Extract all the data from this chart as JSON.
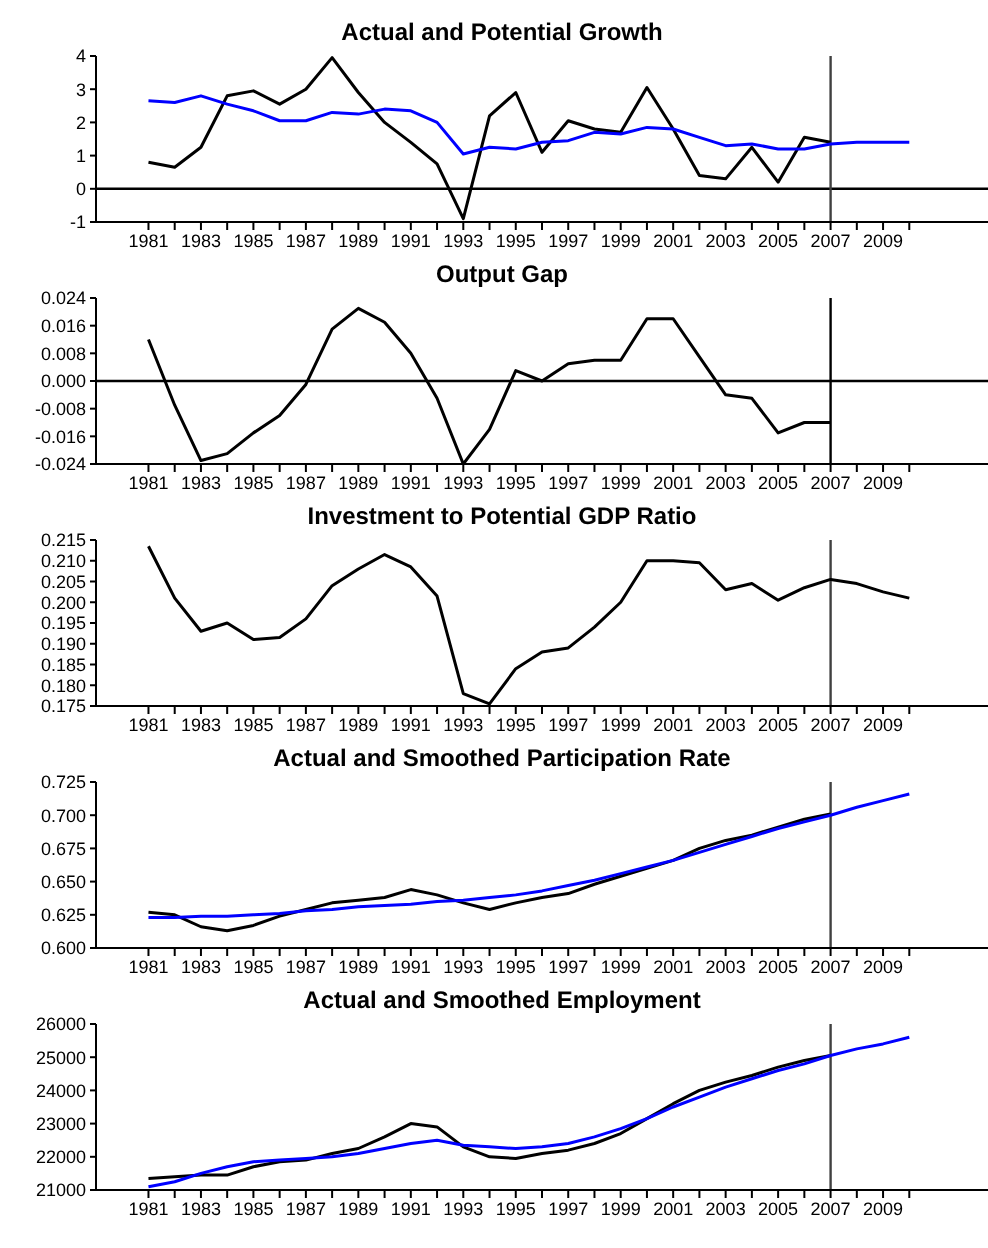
{
  "chart_data": [
    {
      "type": "line",
      "title": "Actual and Potential Growth",
      "x": [
        1981,
        1982,
        1983,
        1984,
        1985,
        1986,
        1987,
        1988,
        1989,
        1990,
        1991,
        1992,
        1993,
        1994,
        1995,
        1996,
        1997,
        1998,
        1999,
        2000,
        2001,
        2002,
        2003,
        2004,
        2005,
        2006,
        2007,
        2008,
        2009,
        2010
      ],
      "series": [
        {
          "color": "#000000",
          "values": [
            0.8,
            0.65,
            1.25,
            2.8,
            2.95,
            2.55,
            3.0,
            3.95,
            2.9,
            2.0,
            1.4,
            0.75,
            -0.9,
            2.2,
            2.9,
            1.1,
            2.05,
            1.8,
            1.7,
            3.05,
            1.8,
            0.4,
            0.3,
            1.25,
            0.2,
            1.55,
            1.4,
            null,
            null,
            null
          ]
        },
        {
          "color": "#0000ff",
          "values": [
            2.65,
            2.6,
            2.8,
            2.55,
            2.35,
            2.05,
            2.05,
            2.3,
            2.25,
            2.4,
            2.35,
            2.0,
            1.05,
            1.25,
            1.2,
            1.4,
            1.45,
            1.7,
            1.65,
            1.85,
            1.8,
            1.55,
            1.3,
            1.35,
            1.2,
            1.2,
            1.35,
            1.4,
            1.4,
            1.4
          ]
        }
      ],
      "xlim": [
        1979,
        2013
      ],
      "xticks": [
        1981,
        {
          "value": 1982,
          "label": null
        },
        1983,
        {
          "value": 1984,
          "label": null
        },
        1985,
        {
          "value": 1986,
          "label": null
        },
        1987,
        {
          "value": 1988,
          "label": null
        },
        1989,
        {
          "value": 1990,
          "label": null
        },
        1991,
        {
          "value": 1992,
          "label": null
        },
        1993,
        {
          "value": 1994,
          "label": null
        },
        1995,
        {
          "value": 1996,
          "label": null
        },
        1997,
        {
          "value": 1998,
          "label": null
        },
        1999,
        {
          "value": 2000,
          "label": null
        },
        2001,
        {
          "value": 2002,
          "label": null
        },
        2003,
        {
          "value": 2004,
          "label": null
        },
        2005,
        {
          "value": 2006,
          "label": null
        },
        2007,
        {
          "value": 2008,
          "label": null
        },
        2009,
        {
          "value": 2010,
          "label": null
        }
      ],
      "ylim": [
        -1,
        4
      ],
      "yticks": [
        -1,
        0,
        1,
        2,
        3,
        4
      ],
      "ref_lines": [
        {
          "axis": "y",
          "value": 0,
          "color": "#000000"
        },
        {
          "axis": "x",
          "value": 2007,
          "color": "#404040"
        }
      ]
    },
    {
      "type": "line",
      "title": "Output Gap",
      "x": [
        1981,
        1982,
        1983,
        1984,
        1985,
        1986,
        1987,
        1988,
        1989,
        1990,
        1991,
        1992,
        1993,
        1994,
        1995,
        1996,
        1997,
        1998,
        1999,
        2000,
        2001,
        2002,
        2003,
        2004,
        2005,
        2006,
        2007
      ],
      "series": [
        {
          "color": "#000000",
          "values": [
            0.012,
            -0.007,
            -0.023,
            -0.021,
            -0.015,
            -0.01,
            -0.001,
            0.015,
            0.021,
            0.017,
            0.008,
            -0.005,
            -0.024,
            -0.014,
            0.003,
            0.0,
            0.005,
            0.006,
            0.006,
            0.018,
            0.018,
            0.007,
            -0.004,
            -0.005,
            -0.015,
            -0.012,
            -0.012
          ]
        }
      ],
      "xlim": [
        1979,
        2013
      ],
      "xticks": [
        1981,
        {
          "value": 1982,
          "label": null
        },
        1983,
        {
          "value": 1984,
          "label": null
        },
        1985,
        {
          "value": 1986,
          "label": null
        },
        1987,
        {
          "value": 1988,
          "label": null
        },
        1989,
        {
          "value": 1990,
          "label": null
        },
        1991,
        {
          "value": 1992,
          "label": null
        },
        1993,
        {
          "value": 1994,
          "label": null
        },
        1995,
        {
          "value": 1996,
          "label": null
        },
        1997,
        {
          "value": 1998,
          "label": null
        },
        1999,
        {
          "value": 2000,
          "label": null
        },
        2001,
        {
          "value": 2002,
          "label": null
        },
        2003,
        {
          "value": 2004,
          "label": null
        },
        2005,
        {
          "value": 2006,
          "label": null
        },
        2007,
        {
          "value": 2008,
          "label": null
        },
        2009,
        {
          "value": 2010,
          "label": null
        }
      ],
      "ylim": [
        -0.024,
        0.024
      ],
      "yticks": [
        -0.024,
        -0.016,
        -0.008,
        {
          "value": 0,
          "label": "0.000"
        },
        0.008,
        0.016,
        0.024
      ],
      "ref_lines": [
        {
          "axis": "y",
          "value": 0,
          "color": "#000000"
        },
        {
          "axis": "x",
          "value": 2007,
          "color": "#000000"
        }
      ]
    },
    {
      "type": "line",
      "title": "Investment to Potential GDP Ratio",
      "x": [
        1981,
        1982,
        1983,
        1984,
        1985,
        1986,
        1987,
        1988,
        1989,
        1990,
        1991,
        1992,
        1993,
        1994,
        1995,
        1996,
        1997,
        1998,
        1999,
        2000,
        2001,
        2002,
        2003,
        2004,
        2005,
        2006,
        2007,
        2008,
        2009,
        2010
      ],
      "series": [
        {
          "color": "#000000",
          "values": [
            0.2135,
            0.201,
            0.193,
            0.195,
            0.191,
            0.1915,
            0.196,
            0.204,
            0.208,
            0.2115,
            0.2085,
            0.2015,
            0.178,
            0.1755,
            0.184,
            0.188,
            0.189,
            0.194,
            0.2,
            0.21,
            0.21,
            0.2095,
            0.203,
            0.2045,
            0.2005,
            0.2035,
            0.2055,
            0.2045,
            0.2025,
            0.201
          ]
        }
      ],
      "xlim": [
        1979,
        2013
      ],
      "xticks": [
        1981,
        {
          "value": 1982,
          "label": null
        },
        1983,
        {
          "value": 1984,
          "label": null
        },
        1985,
        {
          "value": 1986,
          "label": null
        },
        1987,
        {
          "value": 1988,
          "label": null
        },
        1989,
        {
          "value": 1990,
          "label": null
        },
        1991,
        {
          "value": 1992,
          "label": null
        },
        1993,
        {
          "value": 1994,
          "label": null
        },
        1995,
        {
          "value": 1996,
          "label": null
        },
        1997,
        {
          "value": 1998,
          "label": null
        },
        1999,
        {
          "value": 2000,
          "label": null
        },
        2001,
        {
          "value": 2002,
          "label": null
        },
        2003,
        {
          "value": 2004,
          "label": null
        },
        2005,
        {
          "value": 2006,
          "label": null
        },
        2007,
        {
          "value": 2008,
          "label": null
        },
        2009,
        {
          "value": 2010,
          "label": null
        }
      ],
      "ylim": [
        0.175,
        0.215
      ],
      "yticks": [
        0.175,
        {
          "value": 0.18,
          "label": "0.180"
        },
        0.185,
        {
          "value": 0.19,
          "label": "0.190"
        },
        0.195,
        {
          "value": 0.2,
          "label": "0.200"
        },
        0.205,
        {
          "value": 0.21,
          "label": "0.210"
        },
        0.215
      ],
      "ref_lines": [
        {
          "axis": "x",
          "value": 2007,
          "color": "#404040"
        }
      ]
    },
    {
      "type": "line",
      "title": "Actual and Smoothed Participation Rate",
      "x": [
        1981,
        1982,
        1983,
        1984,
        1985,
        1986,
        1987,
        1988,
        1989,
        1990,
        1991,
        1992,
        1993,
        1994,
        1995,
        1996,
        1997,
        1998,
        1999,
        2000,
        2001,
        2002,
        2003,
        2004,
        2005,
        2006,
        2007,
        2008,
        2009,
        2010
      ],
      "series": [
        {
          "color": "#000000",
          "values": [
            0.627,
            0.625,
            0.616,
            0.613,
            0.617,
            0.624,
            0.629,
            0.634,
            0.636,
            0.638,
            0.644,
            0.64,
            0.634,
            0.629,
            0.634,
            0.638,
            0.641,
            0.648,
            0.654,
            0.66,
            0.666,
            0.675,
            0.681,
            0.685,
            0.691,
            0.697,
            0.701,
            null,
            null,
            null
          ]
        },
        {
          "color": "#0000ff",
          "values": [
            0.623,
            0.623,
            0.624,
            0.624,
            0.625,
            0.626,
            0.628,
            0.629,
            0.631,
            0.632,
            0.633,
            0.635,
            0.636,
            0.638,
            0.64,
            0.643,
            0.647,
            0.651,
            0.656,
            0.661,
            0.666,
            0.672,
            0.678,
            0.684,
            0.69,
            0.695,
            0.7,
            0.706,
            0.711,
            0.716
          ]
        }
      ],
      "xlim": [
        1979,
        2013
      ],
      "xticks": [
        1981,
        {
          "value": 1982,
          "label": null
        },
        1983,
        {
          "value": 1984,
          "label": null
        },
        1985,
        {
          "value": 1986,
          "label": null
        },
        1987,
        {
          "value": 1988,
          "label": null
        },
        1989,
        {
          "value": 1990,
          "label": null
        },
        1991,
        {
          "value": 1992,
          "label": null
        },
        1993,
        {
          "value": 1994,
          "label": null
        },
        1995,
        {
          "value": 1996,
          "label": null
        },
        1997,
        {
          "value": 1998,
          "label": null
        },
        1999,
        {
          "value": 2000,
          "label": null
        },
        2001,
        {
          "value": 2002,
          "label": null
        },
        2003,
        {
          "value": 2004,
          "label": null
        },
        2005,
        {
          "value": 2006,
          "label": null
        },
        2007,
        {
          "value": 2008,
          "label": null
        },
        2009,
        {
          "value": 2010,
          "label": null
        }
      ],
      "ylim": [
        0.6,
        0.725
      ],
      "yticks": [
        {
          "value": 0.6,
          "label": "0.600"
        },
        0.625,
        {
          "value": 0.65,
          "label": "0.650"
        },
        0.675,
        {
          "value": 0.7,
          "label": "0.700"
        },
        0.725
      ],
      "ref_lines": [
        {
          "axis": "x",
          "value": 2007,
          "color": "#404040"
        }
      ]
    },
    {
      "type": "line",
      "title": "Actual and Smoothed Employment",
      "x": [
        1981,
        1982,
        1983,
        1984,
        1985,
        1986,
        1987,
        1988,
        1989,
        1990,
        1991,
        1992,
        1993,
        1994,
        1995,
        1996,
        1997,
        1998,
        1999,
        2000,
        2001,
        2002,
        2003,
        2004,
        2005,
        2006,
        2007,
        2008,
        2009,
        2010
      ],
      "series": [
        {
          "color": "#000000",
          "values": [
            21350,
            21400,
            21450,
            21450,
            21700,
            21850,
            21900,
            22100,
            22250,
            22600,
            23000,
            22900,
            22300,
            22000,
            21950,
            22100,
            22200,
            22400,
            22700,
            23150,
            23600,
            24000,
            24250,
            24450,
            24700,
            24900,
            25050,
            null,
            null,
            null
          ]
        },
        {
          "color": "#0000ff",
          "values": [
            21100,
            21250,
            21500,
            21700,
            21850,
            21900,
            21950,
            22000,
            22100,
            22250,
            22400,
            22500,
            22350,
            22300,
            22250,
            22300,
            22400,
            22600,
            22850,
            23150,
            23500,
            23800,
            24100,
            24350,
            24600,
            24800,
            25050,
            25250,
            25400,
            25600
          ]
        }
      ],
      "xlim": [
        1979,
        2013
      ],
      "xticks": [
        1981,
        {
          "value": 1982,
          "label": null
        },
        1983,
        {
          "value": 1984,
          "label": null
        },
        1985,
        {
          "value": 1986,
          "label": null
        },
        1987,
        {
          "value": 1988,
          "label": null
        },
        1989,
        {
          "value": 1990,
          "label": null
        },
        1991,
        {
          "value": 1992,
          "label": null
        },
        1993,
        {
          "value": 1994,
          "label": null
        },
        1995,
        {
          "value": 1996,
          "label": null
        },
        1997,
        {
          "value": 1998,
          "label": null
        },
        1999,
        {
          "value": 2000,
          "label": null
        },
        2001,
        {
          "value": 2002,
          "label": null
        },
        2003,
        {
          "value": 2004,
          "label": null
        },
        2005,
        {
          "value": 2006,
          "label": null
        },
        2007,
        {
          "value": 2008,
          "label": null
        },
        2009,
        {
          "value": 2010,
          "label": null
        }
      ],
      "ylim": [
        21000,
        26000
      ],
      "yticks": [
        21000,
        22000,
        23000,
        24000,
        25000,
        26000
      ],
      "ref_lines": [
        {
          "axis": "x",
          "value": 2007,
          "color": "#404040"
        }
      ]
    }
  ]
}
